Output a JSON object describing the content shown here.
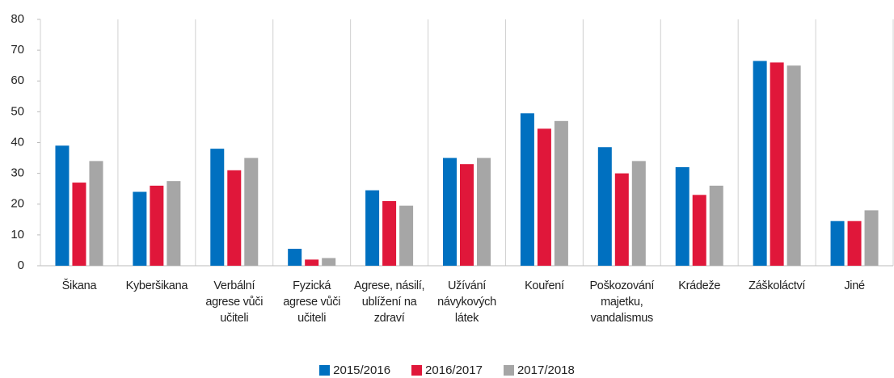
{
  "chart_data": {
    "type": "bar",
    "categories": [
      "Šikana",
      "Kyberšikana",
      "Verbální agrese vůči učiteli",
      "Fyzická agrese vůči učiteli",
      "Agrese, násilí, ublížení na zdraví",
      "Užívání návykových látek",
      "Kouření",
      "Poškozování majetku, vandalismus",
      "Krádeže",
      "Záškoláctví",
      "Jiné"
    ],
    "series": [
      {
        "name": "2015/2016",
        "color": "#0070c0",
        "values": [
          39,
          24,
          38,
          5.5,
          24.5,
          35,
          49.5,
          38.5,
          32,
          66.5,
          14.5
        ]
      },
      {
        "name": "2016/2017",
        "color": "#e0173a",
        "values": [
          27,
          26,
          31,
          2,
          21,
          33,
          44.5,
          30,
          23,
          66,
          14.5
        ]
      },
      {
        "name": "2017/2018",
        "color": "#a6a6a6",
        "values": [
          34,
          27.5,
          35,
          2.5,
          19.5,
          35,
          47,
          34,
          26,
          65,
          18
        ]
      }
    ],
    "ylim": [
      0,
      80
    ],
    "yticks": [
      0,
      10,
      20,
      30,
      40,
      50,
      60,
      70,
      80
    ],
    "legend": "bottom",
    "vertical_grid": true
  }
}
